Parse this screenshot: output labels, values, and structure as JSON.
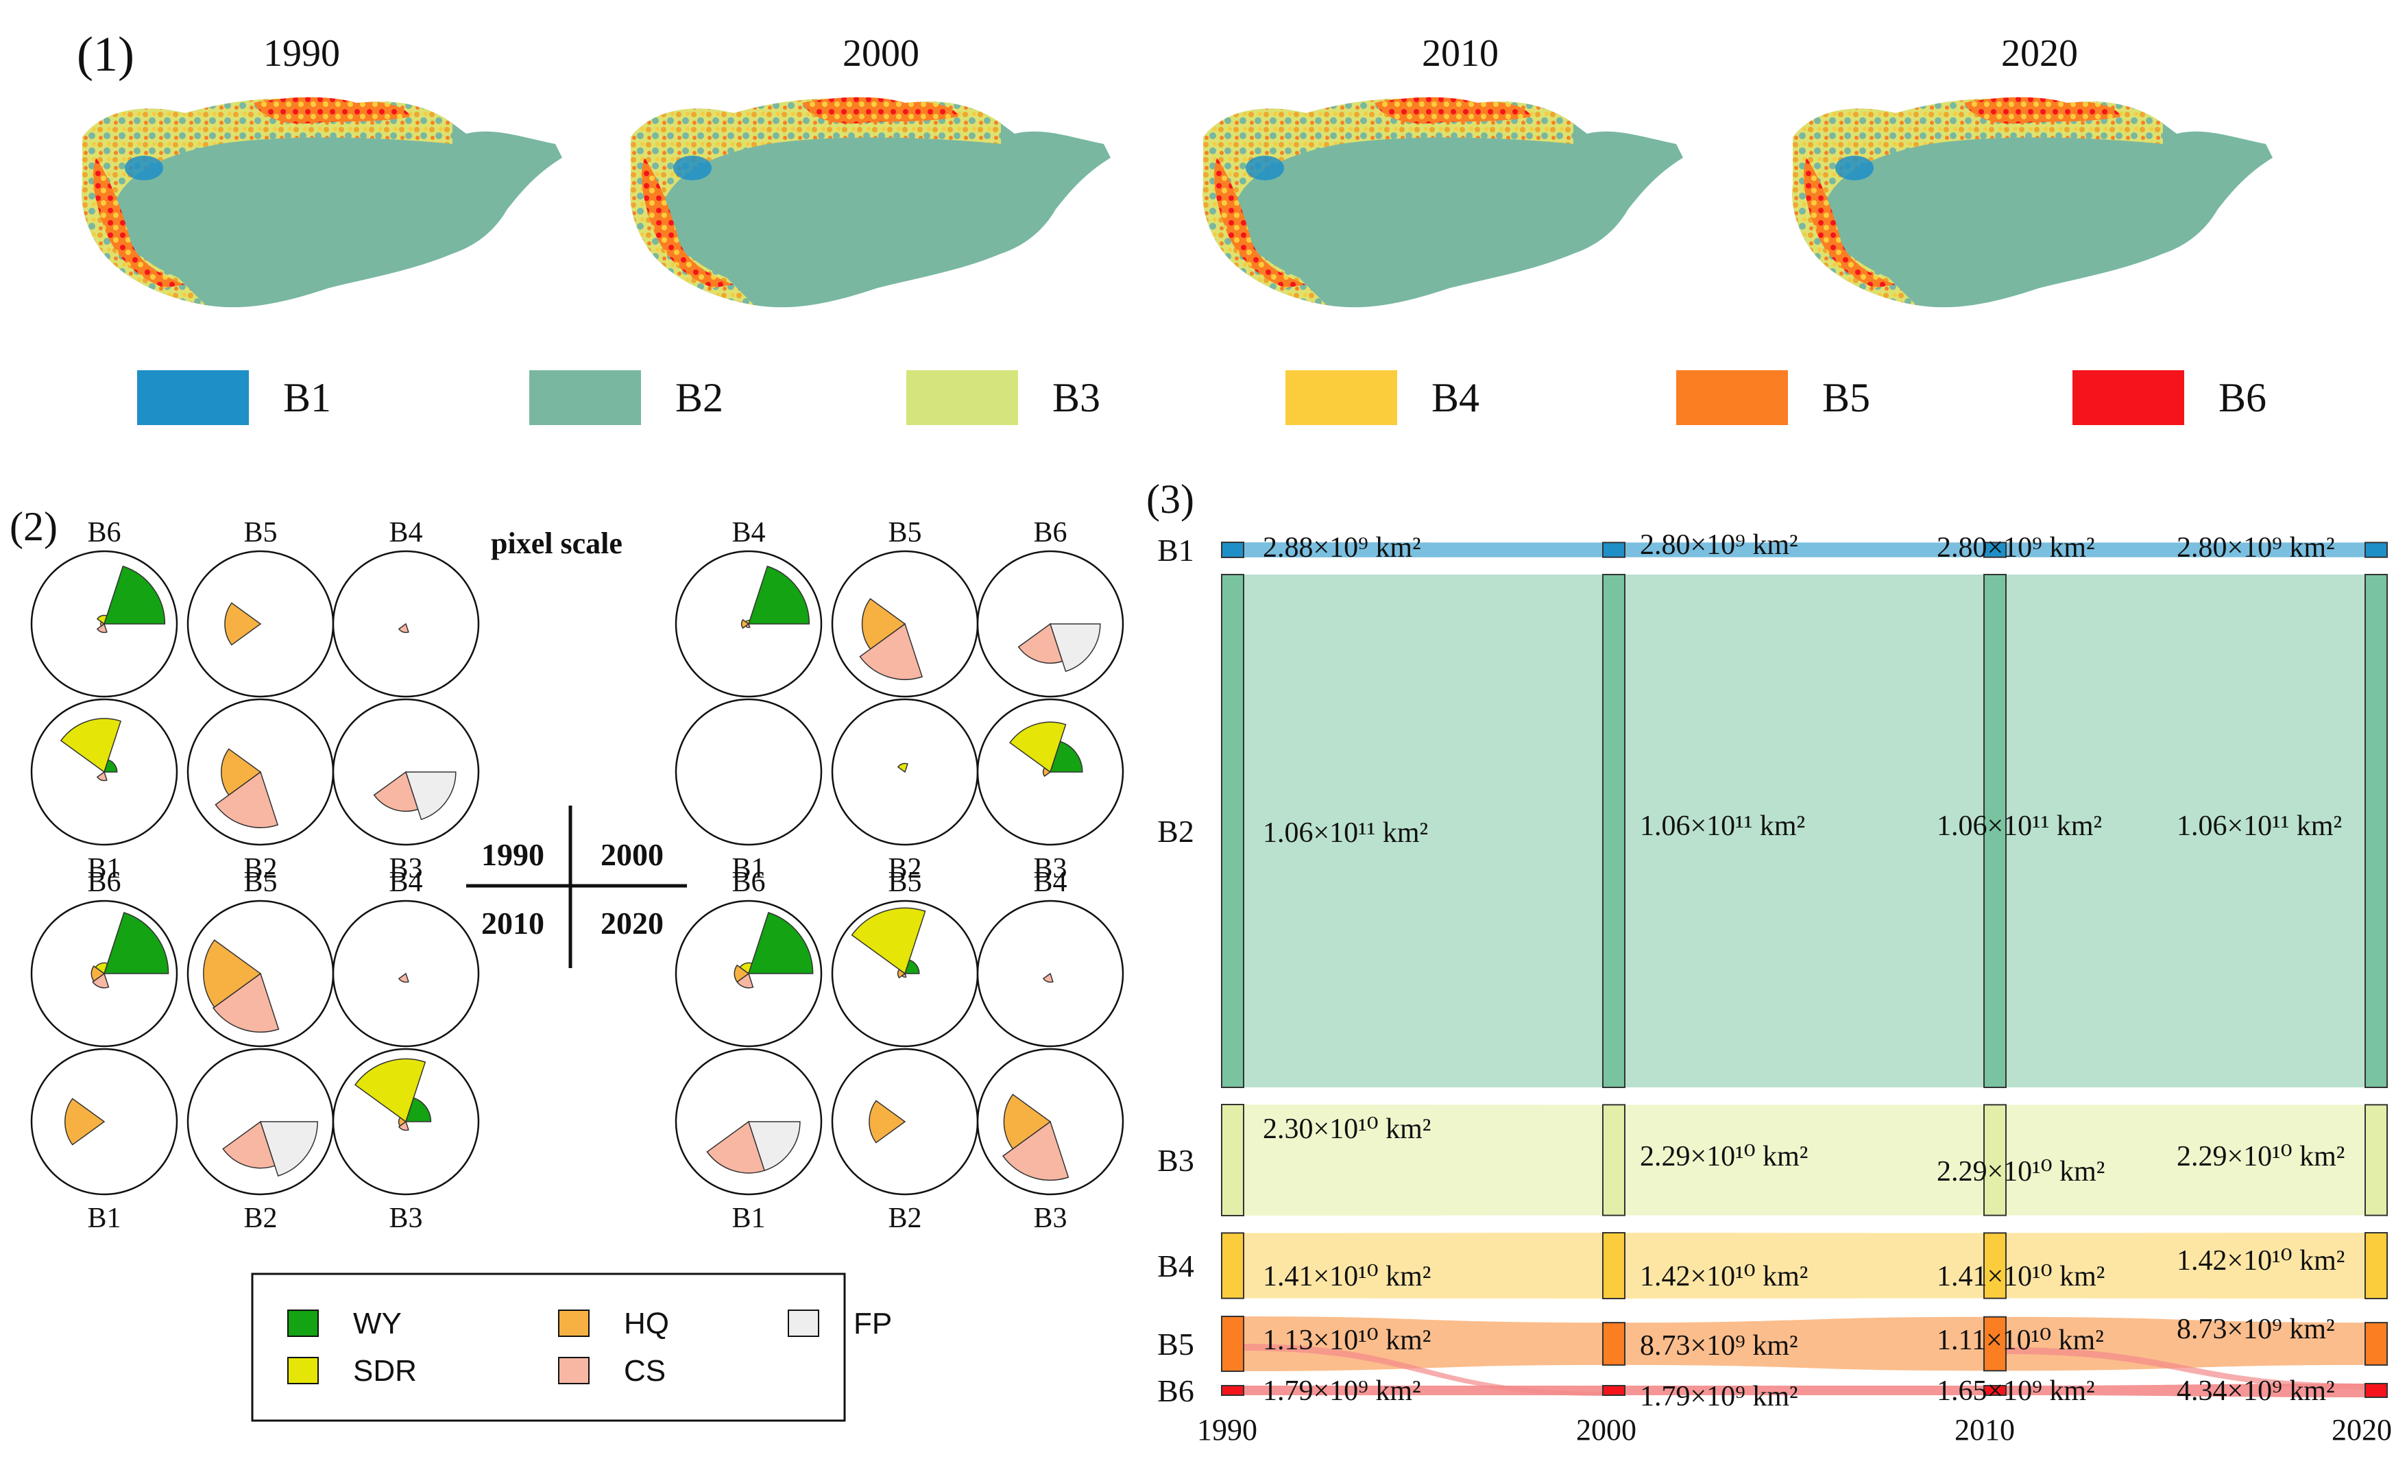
{
  "panel1": {
    "label": "(1)",
    "years": [
      "1990",
      "2000",
      "2010",
      "2020"
    ],
    "legend": [
      {
        "label": "B1",
        "color": "#1f8fc8"
      },
      {
        "label": "B2",
        "color": "#79b7a1"
      },
      {
        "label": "B3",
        "color": "#d6e57b"
      },
      {
        "label": "B4",
        "color": "#fbcd3d"
      },
      {
        "label": "B5",
        "color": "#fb7e23"
      },
      {
        "label": "B6",
        "color": "#f5141b"
      }
    ]
  },
  "panel2": {
    "label": "(2)",
    "scale_title": "pixel scale",
    "quadrant_years": [
      "1990",
      "2000",
      "2010",
      "2020"
    ],
    "colors": {
      "WY": "#13a313",
      "SDR": "#e5e508",
      "HQ": "#f7b142",
      "CS": "#f8b7a3",
      "FP": "#eeeeee"
    },
    "legend": [
      "WY",
      "SDR",
      "HQ",
      "CS",
      "FP"
    ],
    "groups": [
      {
        "year": "1990",
        "circles": [
          {
            "label": "B6",
            "petals": {
              "WY": 0.85,
              "SDR": 0.12,
              "HQ": 0.05,
              "CS": 0.12,
              "FP": 0
            }
          },
          {
            "label": "B5",
            "petals": {
              "WY": 0,
              "SDR": 0,
              "HQ": 0.5,
              "CS": 0,
              "FP": 0
            }
          },
          {
            "label": "B4",
            "petals": {
              "WY": 0,
              "SDR": 0,
              "HQ": 0,
              "CS": 0.12,
              "FP": 0
            }
          },
          {
            "label": "B1",
            "petals": {
              "WY": 0.18,
              "SDR": 0.75,
              "HQ": 0,
              "CS": 0.12,
              "FP": 0
            }
          },
          {
            "label": "B2",
            "petals": {
              "WY": 0,
              "SDR": 0,
              "HQ": 0.55,
              "CS": 0.78,
              "FP": 0
            }
          },
          {
            "label": "B3",
            "petals": {
              "WY": 0,
              "SDR": 0,
              "HQ": 0,
              "CS": 0.55,
              "FP": 0.7
            }
          }
        ]
      },
      {
        "year": "2000",
        "circles": [
          {
            "label": "B4",
            "petals": {
              "WY": 0.85,
              "SDR": 0.05,
              "HQ": 0.1,
              "CS": 0.05,
              "FP": 0
            }
          },
          {
            "label": "B5",
            "petals": {
              "WY": 0,
              "SDR": 0,
              "HQ": 0.6,
              "CS": 0.78,
              "FP": 0
            }
          },
          {
            "label": "B6",
            "petals": {
              "WY": 0,
              "SDR": 0,
              "HQ": 0,
              "CS": 0.55,
              "FP": 0.7
            }
          },
          {
            "label": "B1",
            "petals": {
              "WY": 0,
              "SDR": 0,
              "HQ": 0,
              "CS": 0,
              "FP": 0
            }
          },
          {
            "label": "B2",
            "petals": {
              "WY": 0,
              "SDR": 0.12,
              "HQ": 0,
              "CS": 0,
              "FP": 0
            }
          },
          {
            "label": "B3",
            "petals": {
              "WY": 0.45,
              "SDR": 0.7,
              "HQ": 0.1,
              "CS": 0,
              "FP": 0
            }
          }
        ]
      },
      {
        "year": "2010",
        "circles": [
          {
            "label": "B6",
            "petals": {
              "WY": 0.9,
              "SDR": 0.15,
              "HQ": 0.18,
              "CS": 0.2,
              "FP": 0
            }
          },
          {
            "label": "B5",
            "petals": {
              "WY": 0,
              "SDR": 0,
              "HQ": 0.8,
              "CS": 0.82,
              "FP": 0
            }
          },
          {
            "label": "B4",
            "petals": {
              "WY": 0,
              "SDR": 0,
              "HQ": 0,
              "CS": 0.12,
              "FP": 0
            }
          },
          {
            "label": "B1",
            "petals": {
              "WY": 0,
              "SDR": 0,
              "HQ": 0.55,
              "CS": 0,
              "FP": 0
            }
          },
          {
            "label": "B2",
            "petals": {
              "WY": 0,
              "SDR": 0,
              "HQ": 0,
              "CS": 0.65,
              "FP": 0.8
            }
          },
          {
            "label": "B3",
            "petals": {
              "WY": 0.35,
              "SDR": 0.88,
              "HQ": 0.1,
              "CS": 0.12,
              "FP": 0
            }
          }
        ]
      },
      {
        "year": "2020",
        "circles": [
          {
            "label": "B6",
            "petals": {
              "WY": 0.9,
              "SDR": 0.15,
              "HQ": 0.2,
              "CS": 0.2,
              "FP": 0
            }
          },
          {
            "label": "B5",
            "petals": {
              "WY": 0.2,
              "SDR": 0.92,
              "HQ": 0.1,
              "CS": 0.05,
              "FP": 0
            }
          },
          {
            "label": "B4",
            "petals": {
              "WY": 0,
              "SDR": 0,
              "HQ": 0,
              "CS": 0.12,
              "FP": 0
            }
          },
          {
            "label": "B1",
            "petals": {
              "WY": 0,
              "SDR": 0,
              "HQ": 0,
              "CS": 0.72,
              "FP": 0.72
            }
          },
          {
            "label": "B2",
            "petals": {
              "WY": 0,
              "SDR": 0,
              "HQ": 0.5,
              "CS": 0,
              "FP": 0
            }
          },
          {
            "label": "B3",
            "petals": {
              "WY": 0,
              "SDR": 0,
              "HQ": 0.65,
              "CS": 0.82,
              "FP": 0
            }
          }
        ]
      }
    ]
  },
  "chart_data": {
    "type": "sankey",
    "title": "(3)",
    "x": [
      "1990",
      "2000",
      "2010",
      "2020"
    ],
    "nodes": [
      {
        "name": "B1",
        "color": "#1f8fc8",
        "flow_color": "#6bb8dc",
        "area": [
          2880000000.0,
          2800000000.0,
          2800000000.0,
          2800000000.0
        ],
        "labels": [
          "2.88×10⁹ km²",
          "2.80×10⁹ km²",
          "2.80×10⁹ km²",
          "2.80×10⁹ km²"
        ]
      },
      {
        "name": "B2",
        "color": "#79c3a1",
        "flow_color": "#b1dec9",
        "area": [
          106000000000.0,
          106000000000.0,
          106000000000.0,
          106000000000.0
        ],
        "labels": [
          "1.06×10¹¹ km²",
          "1.06×10¹¹ km²",
          "1.06×10¹¹ km²",
          "1.06×10¹¹ km²"
        ]
      },
      {
        "name": "B3",
        "color": "#e3efa9",
        "flow_color": "#edf5c6",
        "area": [
          23000000000.0,
          22900000000.0,
          22900000000.0,
          22900000000.0
        ],
        "labels": [
          "2.30×10¹⁰ km²",
          "2.29×10¹⁰ km²",
          "2.29×10¹⁰ km²",
          "2.29×10¹⁰ km²"
        ]
      },
      {
        "name": "B4",
        "color": "#fbcd3d",
        "flow_color": "#fde39a",
        "area": [
          14100000000.0,
          14200000000.0,
          14100000000.0,
          14200000000.0
        ],
        "labels": [
          "1.41×10¹⁰ km²",
          "1.42×10¹⁰ km²",
          "1.41×10¹⁰ km²",
          "1.42×10¹⁰ km²"
        ]
      },
      {
        "name": "B5",
        "color": "#fb7e23",
        "flow_color": "#fbb680",
        "area": [
          11300000000.0,
          8730000000.0,
          11100000000.0,
          8730000000.0
        ],
        "labels": [
          "1.13×10¹⁰ km²",
          "8.73×10⁹ km²",
          "1.11×10¹⁰ km²",
          "8.73×10⁹ km²"
        ]
      },
      {
        "name": "B6",
        "color": "#f5141b",
        "flow_color": "#f48a8a",
        "area": [
          1790000000.0,
          1790000000.0,
          1650000000.0,
          4340000000.0
        ],
        "labels": [
          "1.79×10⁹ km²",
          "1.79×10⁹ km²",
          "1.65×10⁹ km²",
          "4.34×10⁹ km²"
        ]
      }
    ]
  }
}
